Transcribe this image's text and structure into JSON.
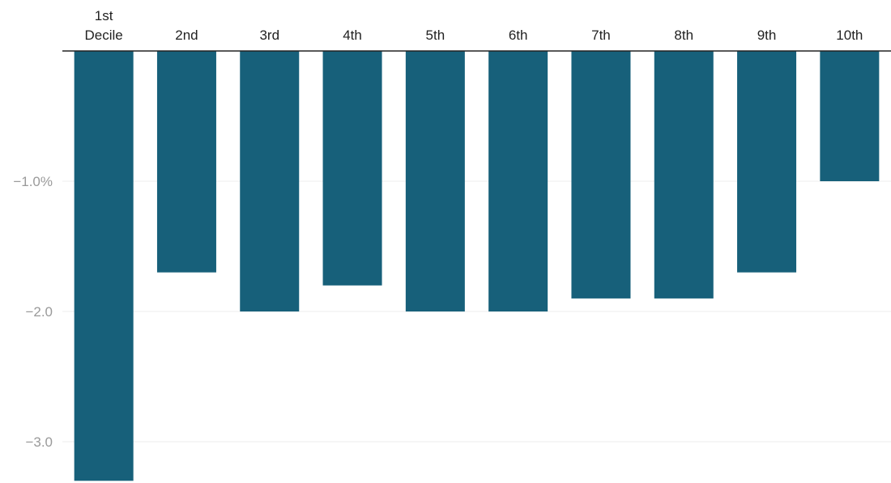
{
  "chart_data": {
    "type": "bar",
    "categories": [
      [
        "1st",
        "Decile"
      ],
      [
        "2nd"
      ],
      [
        "3rd"
      ],
      [
        "4th"
      ],
      [
        "5th"
      ],
      [
        "6th"
      ],
      [
        "7th"
      ],
      [
        "8th"
      ],
      [
        "9th"
      ],
      [
        "10th"
      ]
    ],
    "values": [
      -3.3,
      -1.7,
      -2.0,
      -1.8,
      -2.0,
      -2.0,
      -1.9,
      -1.9,
      -1.7,
      -1.0
    ],
    "yticks": [
      {
        "value": -1.0,
        "label": "−1.0%"
      },
      {
        "value": -2.0,
        "label": "−2.0"
      },
      {
        "value": -3.0,
        "label": "−3.0"
      }
    ],
    "ylim": [
      -3.3,
      0
    ],
    "grid": true,
    "bar_color": "#17607a",
    "gridline_color": "#eeeeee",
    "axis_line_color": "#222222"
  }
}
